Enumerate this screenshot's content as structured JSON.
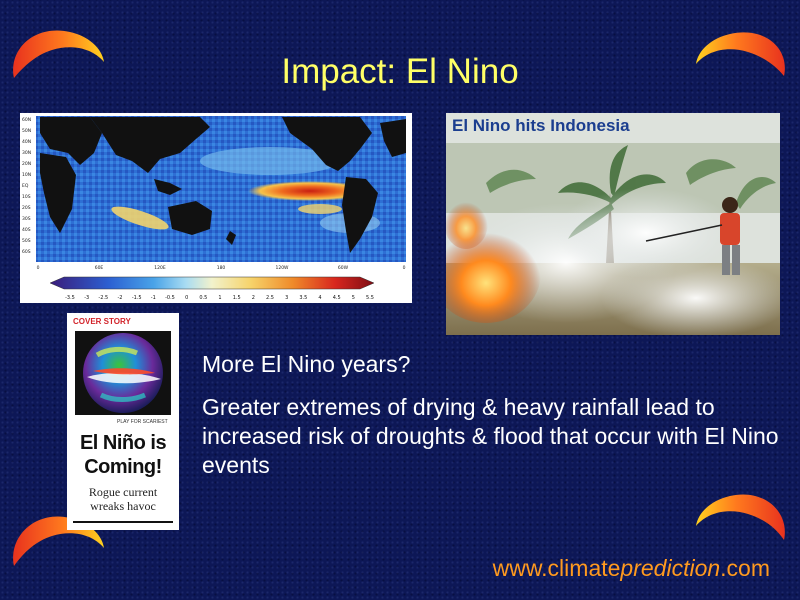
{
  "slide": {
    "title": "Impact: El Nino",
    "bullets": [
      "More El Nino years?",
      "Greater extremes of drying & heavy rainfall lead to increased risk of droughts & flood that occur with El Nino events"
    ]
  },
  "map_figure": {
    "lat_labels": [
      "60N",
      "50N",
      "40N",
      "30N",
      "20N",
      "10N",
      "EQ",
      "10S",
      "20S",
      "30S",
      "40S",
      "50S",
      "60S"
    ],
    "lon_labels": [
      "0",
      "60E",
      "120E",
      "180",
      "120W",
      "60W",
      "0"
    ],
    "colorbar_labels": [
      "-3.5",
      "-3",
      "-2.5",
      "-2",
      "-1.5",
      "-1",
      "-0.5",
      "0",
      "0.5",
      "1",
      "1.5",
      "2",
      "2.5",
      "3",
      "3.5",
      "4",
      "4.5",
      "5",
      "5.5"
    ]
  },
  "photo": {
    "title": "El Nino hits Indonesia"
  },
  "magazine_cover": {
    "label": "COVER STORY",
    "headline": "El Niño is\nComing!",
    "subheadline": "Rogue current\nwreaks havoc",
    "small_text": "PLAY FOR SCARIEST"
  },
  "footer": {
    "pre": "www.climate",
    "em": "prediction",
    "post": ".com"
  },
  "colors": {
    "background": "#0d1756",
    "title": "#ffff66",
    "footer": "#ff9a1f",
    "swoosh_red": "#e8321e",
    "swoosh_yellow": "#ffd21f"
  }
}
